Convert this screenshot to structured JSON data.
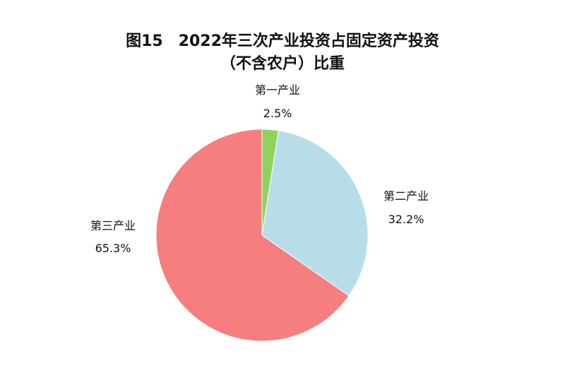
{
  "chart_data": {
    "type": "pie",
    "title": "图15　2022年三次产业投资占固定资产投资",
    "subtitle": "（不含农户）比重",
    "start_angle": "top",
    "direction": "clockwise",
    "slices": [
      {
        "label": "第一产业",
        "value": 2.5,
        "value_label": "2.5%",
        "color": "#8ed35e"
      },
      {
        "label": "第二产业",
        "value": 32.2,
        "value_label": "32.2%",
        "color": "#b6dde8"
      },
      {
        "label": "第三产业",
        "value": 65.3,
        "value_label": "65.3%",
        "color": "#f67e7e"
      }
    ]
  }
}
